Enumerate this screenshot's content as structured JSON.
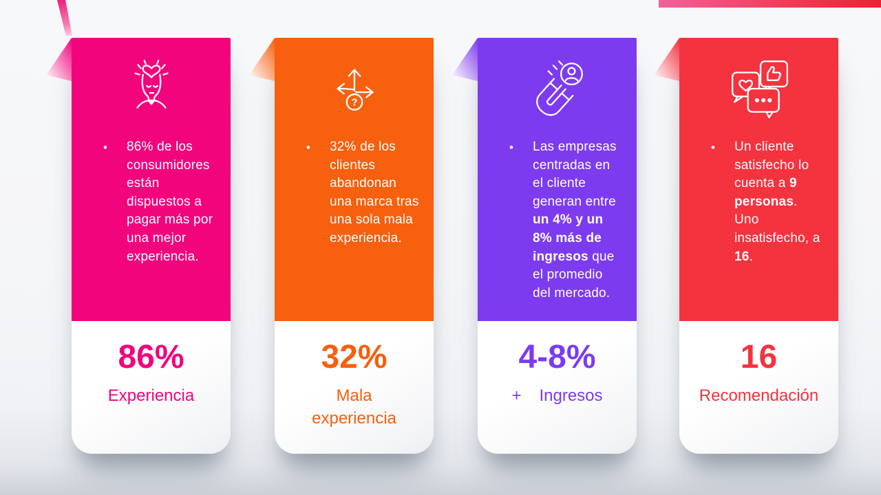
{
  "decor": {
    "top_right_ribbon_colors": [
      "#f2619b",
      "#ee2133"
    ],
    "top_left_ribbon_colors": [
      "#ee1f7d",
      "#fbd3e6"
    ],
    "background": "#f5f6f8"
  },
  "cards": [
    {
      "id": "experiencia",
      "accent": "#f2047d",
      "icon": "mind-heart-icon",
      "bullet_segments": [
        {
          "text": "86% de los consumidores están dispuestos a pagar más por una mejor experiencia.",
          "bold": false
        }
      ],
      "stat": "86%",
      "label": "Experiencia"
    },
    {
      "id": "mala-experiencia",
      "accent": "#f6600f",
      "icon": "crossroads-arrows-icon",
      "bullet_segments": [
        {
          "text": "32% de los clientes abandonan una marca tras una sola mala experiencia.",
          "bold": false
        }
      ],
      "stat": "32%",
      "label": "Mala\nexperiencia"
    },
    {
      "id": "ingresos",
      "accent": "#7d3bf0",
      "icon": "magnet-attract-icon",
      "bullet_segments": [
        {
          "text": "Las empresas centradas en el cliente generan entre ",
          "bold": false
        },
        {
          "text": "un 4% y un 8% más de ingresos",
          "bold": true
        },
        {
          "text": " que el promedio del mercado.",
          "bold": false
        }
      ],
      "stat": "4-8%",
      "label_prefix": "+",
      "label": "Ingresos"
    },
    {
      "id": "recomendacion",
      "accent": "#f4333f",
      "icon": "feedback-bubbles-icon",
      "bullet_segments": [
        {
          "text": "Un cliente satisfecho lo cuenta a ",
          "bold": false
        },
        {
          "text": "9 personas",
          "bold": true
        },
        {
          "text": ". Uno insatisfecho, a ",
          "bold": false
        },
        {
          "text": "16",
          "bold": true
        },
        {
          "text": ".",
          "bold": false
        }
      ],
      "stat": "16",
      "label": "Recomendación"
    }
  ]
}
